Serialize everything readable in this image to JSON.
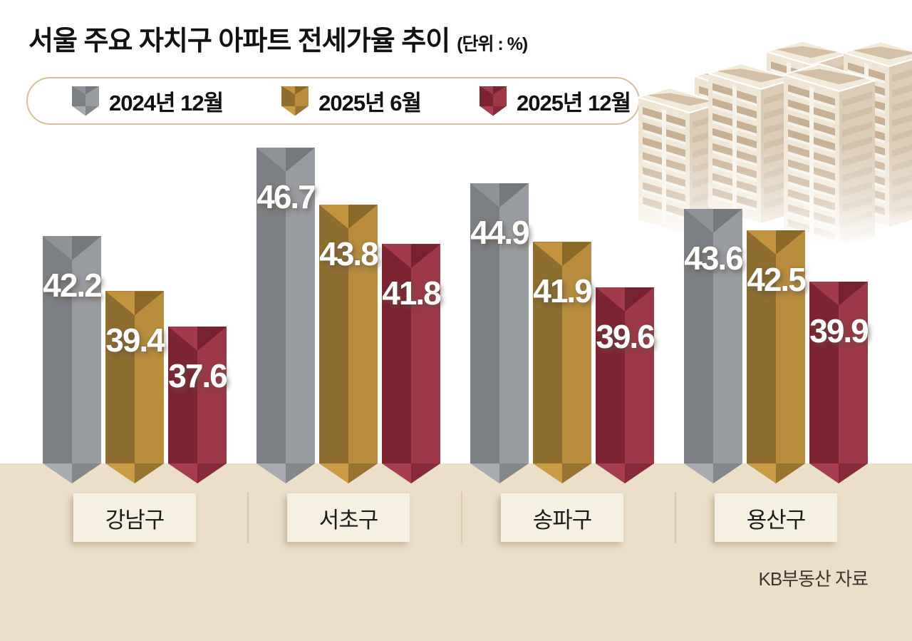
{
  "title": {
    "main": "서울 주요 자치구 아파트 전세가율 추이",
    "unit": "(단위 : %)"
  },
  "source": "KB부동산 자료",
  "chart_data": {
    "type": "bar",
    "title": "서울 주요 자치구 아파트 전세가율 추이",
    "unit": "%",
    "legend_position": "top",
    "value_labels": true,
    "grid": false,
    "categories": [
      "강남구",
      "서초구",
      "송파구",
      "용산구"
    ],
    "series": [
      {
        "name": "2024년 12월",
        "values": [
          42.2,
          46.7,
          44.9,
          43.6
        ]
      },
      {
        "name": "2025년 6월",
        "values": [
          39.4,
          43.8,
          41.9,
          42.5
        ]
      },
      {
        "name": "2025년 12월",
        "values": [
          37.6,
          41.8,
          39.6,
          39.9
        ]
      }
    ],
    "source": "KB부동산 자료"
  },
  "colors": {
    "series": [
      {
        "name": "2024년 12월",
        "bodyL": "#7c7f83",
        "bodyR": "#989ba0",
        "capL": "#8f9297",
        "capR": "#75787d",
        "tipL": "#a7aaae",
        "tipR": "#84878c"
      },
      {
        "name": "2025년 6월",
        "bodyL": "#8d6d30",
        "bodyR": "#b88d3e",
        "capL": "#c2943f",
        "capR": "#8a6827",
        "tipL": "#c79c45",
        "tipR": "#977430"
      },
      {
        "name": "2025년 12월",
        "bodyL": "#7d2433",
        "bodyR": "#9c3847",
        "capL": "#a23a4b",
        "capR": "#762230",
        "tipL": "#a73e50",
        "tipR": "#882939"
      }
    ],
    "ground": "#ebdfca",
    "legend_border": "#d9bf9e",
    "label_box_bg": "#f6f0e2",
    "divider": "#dcc9ac",
    "value_label": "#ffffff"
  }
}
